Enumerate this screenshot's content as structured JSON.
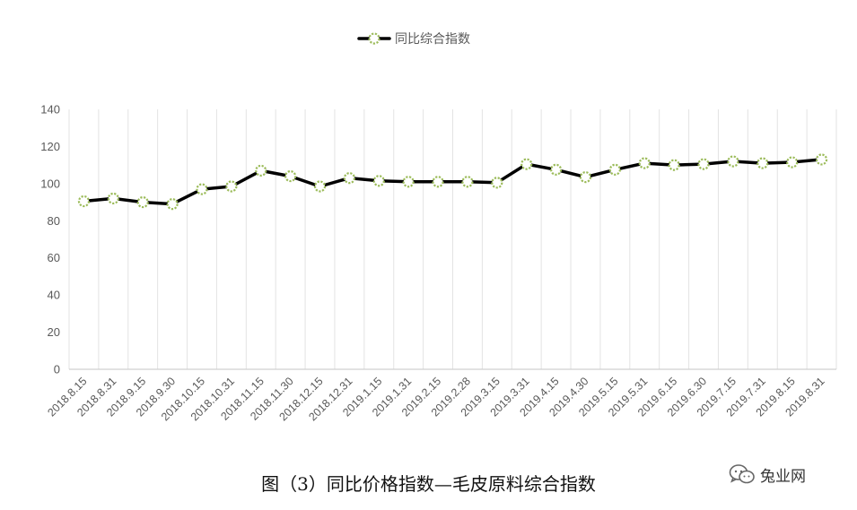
{
  "chart_data": {
    "type": "line",
    "title": "",
    "xlabel": "",
    "ylabel": "",
    "ylim": [
      0,
      140
    ],
    "yticks": [
      0,
      20,
      40,
      60,
      80,
      100,
      120,
      140
    ],
    "grid": "vertical",
    "legend": "top-center",
    "categories": [
      "2018.8.15",
      "2018.8.31",
      "2018.9.15",
      "2018.9.30",
      "2018.10.15",
      "2018.10.31",
      "2018.11.15",
      "2018.11.30",
      "2018.12.15",
      "2018.12.31",
      "2019.1.15",
      "2019.1.31",
      "2019.2.15",
      "2019.2.28",
      "2019.3.15",
      "2019.3.31",
      "2019.4.15",
      "2019.4.30",
      "2019.5.15",
      "2019.5.31",
      "2019.6.15",
      "2019.6.30",
      "2019.7.15",
      "2019.7.31",
      "2019.8.15",
      "2019.8.31"
    ],
    "series": [
      {
        "name": "同比综合指数",
        "color": "#000000",
        "marker_color": "#9bbb59",
        "values": [
          90.5,
          92,
          90,
          89,
          97,
          98.5,
          107,
          104,
          98.5,
          103,
          101.5,
          101,
          101,
          101,
          100.5,
          110.5,
          107.5,
          103.5,
          107.5,
          111,
          110,
          110.5,
          112,
          111,
          111.5,
          113
        ]
      }
    ]
  },
  "caption": "图（3）同比价格指数—毛皮原料综合指数",
  "watermark": {
    "text": "兔业网",
    "icon": "wechat-icon"
  }
}
